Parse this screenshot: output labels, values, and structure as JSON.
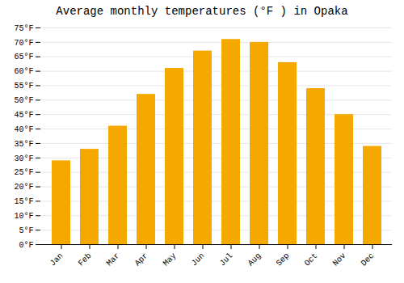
{
  "chart_data": {
    "type": "bar",
    "title": "Average monthly temperatures (°F ) in Opaka",
    "categories": [
      "Jan",
      "Feb",
      "Mar",
      "Apr",
      "May",
      "Jun",
      "Jul",
      "Aug",
      "Sep",
      "Oct",
      "Nov",
      "Dec"
    ],
    "values": [
      29,
      33,
      41,
      52,
      61,
      67,
      71,
      70,
      63,
      54,
      45,
      34
    ],
    "color": "#F5A800",
    "ylim": [
      0,
      75
    ],
    "yticks": [
      {
        "value": 0,
        "label": "0°F"
      },
      {
        "value": 5,
        "label": "5°F"
      },
      {
        "value": 10,
        "label": "10°F"
      },
      {
        "value": 15,
        "label": "15°F"
      },
      {
        "value": 20,
        "label": "20°F"
      },
      {
        "value": 25,
        "label": "25°F"
      },
      {
        "value": 30,
        "label": "30°F"
      },
      {
        "value": 35,
        "label": "35°F"
      },
      {
        "value": 40,
        "label": "40°F"
      },
      {
        "value": 45,
        "label": "45°F"
      },
      {
        "value": 50,
        "label": "50°F"
      },
      {
        "value": 55,
        "label": "55°F"
      },
      {
        "value": 60,
        "label": "60°F"
      },
      {
        "value": 65,
        "label": "65°F"
      },
      {
        "value": 70,
        "label": "70°F"
      },
      {
        "value": 75,
        "label": "75°F"
      }
    ],
    "grid": true
  }
}
